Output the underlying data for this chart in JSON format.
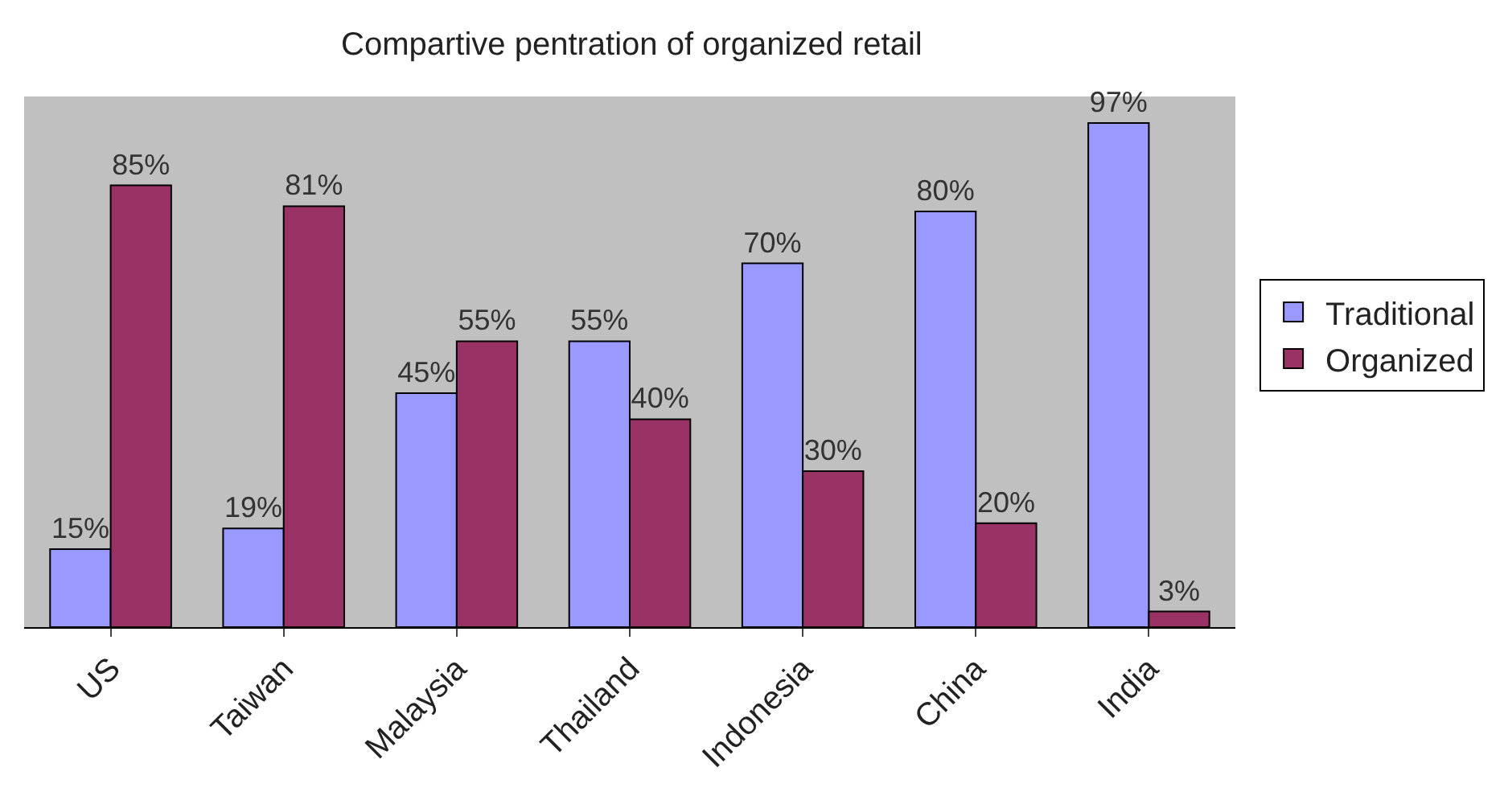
{
  "chart_data": {
    "type": "bar",
    "title": "Compartive pentration of organized retail",
    "categories": [
      "US",
      "Taiwan",
      "Malaysia",
      "Thailand",
      "Indonesia",
      "China",
      "India"
    ],
    "series": [
      {
        "name": "Traditional",
        "color": "#9999ff",
        "values": [
          15,
          19,
          45,
          55,
          70,
          80,
          97
        ],
        "value_labels": [
          "15%",
          "19%",
          "45%",
          "55%",
          "70%",
          "80%",
          "97%"
        ]
      },
      {
        "name": "Organized",
        "color": "#993366",
        "values": [
          85,
          81,
          55,
          40,
          30,
          20,
          3
        ],
        "value_labels": [
          "85%",
          "81%",
          "55%",
          "40%",
          "30%",
          "20%",
          "3%"
        ]
      }
    ],
    "legend": "right",
    "grid": false
  }
}
